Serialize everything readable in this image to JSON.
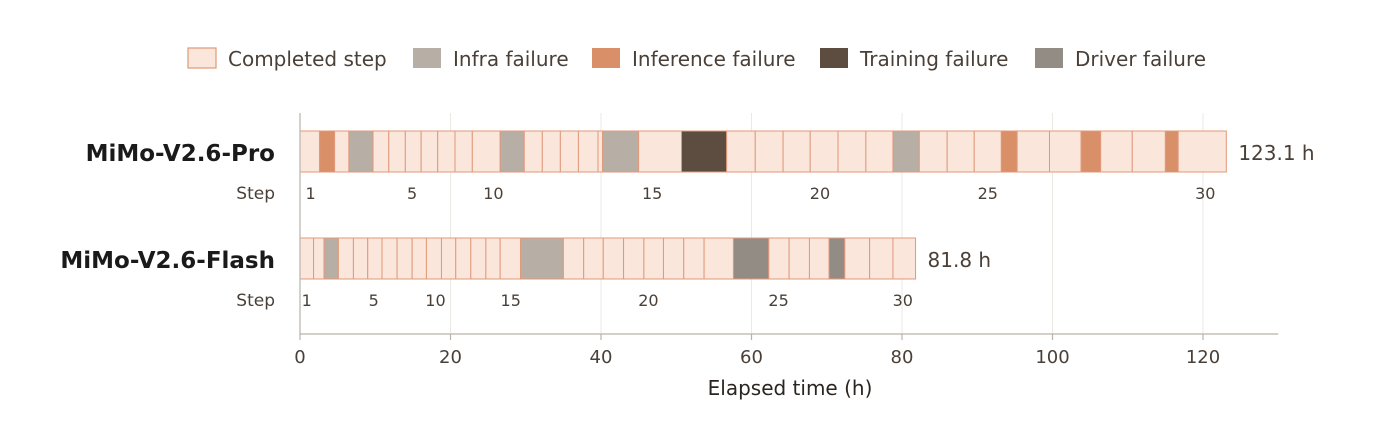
{
  "chart_data": {
    "type": "bar",
    "subtype": "gantt-timeline",
    "xlabel": "Elapsed time (h)",
    "xlim": [
      0,
      130
    ],
    "xticks": [
      0,
      20,
      40,
      60,
      80,
      100,
      120
    ],
    "grid": true,
    "legend_position": "top",
    "categories": [
      "Completed step",
      "Infra failure",
      "Inference failure",
      "Training failure",
      "Driver failure"
    ],
    "colors": {
      "Completed step": "#fbe6dc",
      "Infra failure": "#b7aea5",
      "Inference failure": "#d98f67",
      "Training failure": "#5c4d40",
      "Driver failure": "#928c85",
      "edge": "#e0997a"
    },
    "step_label": "Step",
    "rows": [
      {
        "name": "MiMo-V2.6-Pro",
        "total_label": "123.1 h",
        "total": 123.1,
        "segments": [
          [
            "Completed step",
            0.0,
            2.6
          ],
          [
            "Inference failure",
            2.6,
            4.6
          ],
          [
            "Completed step",
            4.6,
            6.5
          ],
          [
            "Infra failure",
            6.5,
            9.7
          ],
          [
            "Completed step",
            9.7,
            11.8
          ],
          [
            "Completed step",
            11.8,
            14.0
          ],
          [
            "Completed step",
            14.0,
            16.1
          ],
          [
            "Completed step",
            16.1,
            18.3
          ],
          [
            "Completed step",
            18.3,
            20.6
          ],
          [
            "Completed step",
            20.6,
            22.9
          ],
          [
            "Completed step",
            22.9,
            26.6
          ],
          [
            "Infra failure",
            26.6,
            29.8
          ],
          [
            "Completed step",
            29.8,
            32.2
          ],
          [
            "Completed step",
            32.2,
            34.6
          ],
          [
            "Completed step",
            34.6,
            37.0
          ],
          [
            "Completed step",
            37.0,
            39.6
          ],
          [
            "Completed step",
            39.6,
            40.2
          ],
          [
            "Infra failure",
            40.2,
            45.0
          ],
          [
            "Completed step",
            45.0,
            50.7
          ],
          [
            "Training failure",
            50.7,
            56.7
          ],
          [
            "Completed step",
            56.7,
            60.5
          ],
          [
            "Completed step",
            60.5,
            64.2
          ],
          [
            "Completed step",
            64.2,
            67.8
          ],
          [
            "Completed step",
            67.8,
            71.5
          ],
          [
            "Completed step",
            71.5,
            75.2
          ],
          [
            "Completed step",
            75.2,
            78.8
          ],
          [
            "Infra failure",
            78.8,
            82.3
          ],
          [
            "Completed step",
            82.3,
            86.0
          ],
          [
            "Completed step",
            86.0,
            89.6
          ],
          [
            "Completed step",
            89.6,
            93.2
          ],
          [
            "Inference failure",
            93.2,
            95.3
          ],
          [
            "Completed step",
            95.3,
            99.6
          ],
          [
            "Completed step",
            99.6,
            103.8
          ],
          [
            "Inference failure",
            103.8,
            106.4
          ],
          [
            "Completed step",
            106.4,
            110.6
          ],
          [
            "Completed step",
            110.6,
            115.0
          ],
          [
            "Inference failure",
            115.0,
            116.7
          ],
          [
            "Completed step",
            116.7,
            123.1
          ]
        ],
        "step_ticks": [
          {
            "label": "1",
            "x": 1.4
          },
          {
            "label": "5",
            "x": 14.9
          },
          {
            "label": "10",
            "x": 25.7
          },
          {
            "label": "15",
            "x": 46.8
          },
          {
            "label": "20",
            "x": 69.1
          },
          {
            "label": "25",
            "x": 91.4
          },
          {
            "label": "30",
            "x": 120.3
          }
        ]
      },
      {
        "name": "MiMo-V2.6-Flash",
        "total_label": "81.8 h",
        "total": 81.8,
        "segments": [
          [
            "Completed step",
            0.0,
            1.8
          ],
          [
            "Completed step",
            1.8,
            3.2
          ],
          [
            "Infra failure",
            3.2,
            5.1
          ],
          [
            "Completed step",
            5.1,
            7.1
          ],
          [
            "Completed step",
            7.1,
            9.0
          ],
          [
            "Completed step",
            9.0,
            10.9
          ],
          [
            "Completed step",
            10.9,
            12.9
          ],
          [
            "Completed step",
            12.9,
            14.9
          ],
          [
            "Completed step",
            14.9,
            16.8
          ],
          [
            "Completed step",
            16.8,
            18.8
          ],
          [
            "Completed step",
            18.8,
            20.7
          ],
          [
            "Completed step",
            20.7,
            22.7
          ],
          [
            "Completed step",
            22.7,
            24.7
          ],
          [
            "Completed step",
            24.7,
            26.6
          ],
          [
            "Completed step",
            26.6,
            29.3
          ],
          [
            "Infra failure",
            29.3,
            35.0
          ],
          [
            "Completed step",
            35.0,
            37.7
          ],
          [
            "Completed step",
            37.7,
            40.3
          ],
          [
            "Completed step",
            40.3,
            43.0
          ],
          [
            "Completed step",
            43.0,
            45.7
          ],
          [
            "Completed step",
            45.7,
            48.3
          ],
          [
            "Completed step",
            48.3,
            51.0
          ],
          [
            "Completed step",
            51.0,
            53.7
          ],
          [
            "Completed step",
            53.7,
            57.6
          ],
          [
            "Driver failure",
            57.6,
            62.3
          ],
          [
            "Completed step",
            62.3,
            65.0
          ],
          [
            "Completed step",
            65.0,
            67.7
          ],
          [
            "Completed step",
            67.7,
            70.3
          ],
          [
            "Driver failure",
            70.3,
            72.4
          ],
          [
            "Completed step",
            72.4,
            75.7
          ],
          [
            "Completed step",
            75.7,
            78.8
          ],
          [
            "Completed step",
            78.8,
            81.8
          ]
        ],
        "step_ticks": [
          {
            "label": "1",
            "x": 0.9
          },
          {
            "label": "5",
            "x": 9.8
          },
          {
            "label": "10",
            "x": 18.0
          },
          {
            "label": "15",
            "x": 28.0
          },
          {
            "label": "20",
            "x": 46.3
          },
          {
            "label": "25",
            "x": 63.6
          },
          {
            "label": "30",
            "x": 80.1
          }
        ]
      }
    ]
  }
}
